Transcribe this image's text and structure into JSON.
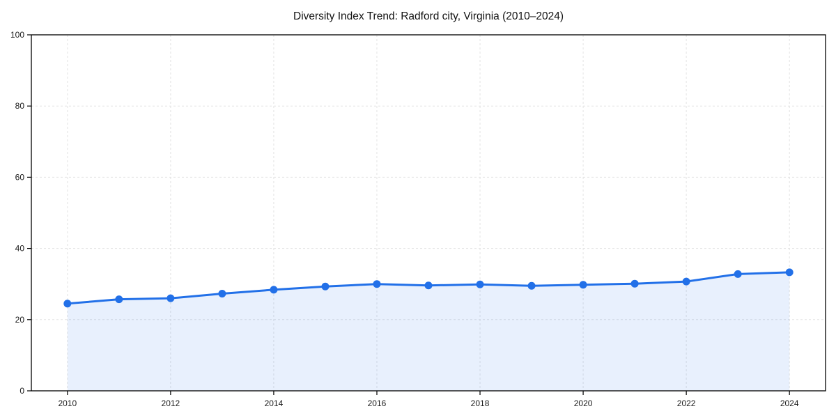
{
  "chart_data": {
    "type": "line",
    "title": "Diversity Index Trend: Radford city, Virginia (2010–2024)",
    "x": [
      2010,
      2011,
      2012,
      2013,
      2014,
      2015,
      2016,
      2017,
      2018,
      2019,
      2020,
      2021,
      2022,
      2023,
      2024
    ],
    "values": [
      24.5,
      25.7,
      26.0,
      27.3,
      28.4,
      29.3,
      30.0,
      29.6,
      29.9,
      29.5,
      29.8,
      30.1,
      30.7,
      32.8,
      33.3
    ],
    "xlabel": "",
    "ylabel": "",
    "xlim": [
      2009.3,
      2024.7
    ],
    "ylim": [
      0,
      100
    ],
    "xticks": [
      2010,
      2012,
      2014,
      2016,
      2018,
      2020,
      2022,
      2024
    ],
    "yticks": [
      0,
      20,
      40,
      60,
      80,
      100
    ],
    "grid": true,
    "grid_style": "dashed",
    "legend": "none",
    "area_fill": true,
    "marker": "circle",
    "colors": {
      "line": "#2270e8",
      "fill": "#2270e8",
      "fill_opacity": 0.1,
      "grid": "#e3e3e3",
      "axis": "#000000",
      "text": "#1a1a1a"
    }
  }
}
